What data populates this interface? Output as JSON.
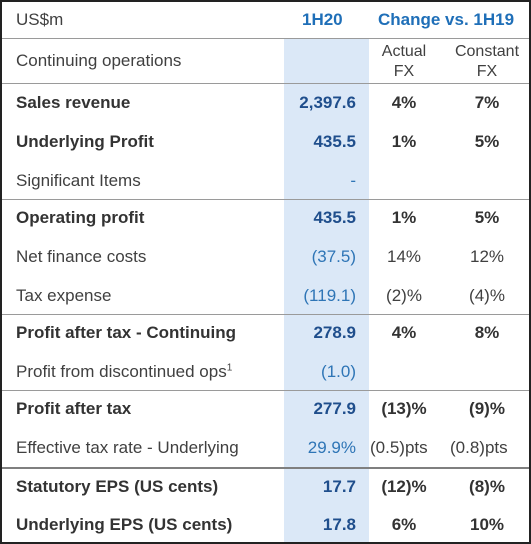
{
  "header": {
    "currency": "US$m",
    "period": "1H20",
    "change": "Change vs. 1H19"
  },
  "subheader": {
    "label": "Continuing operations",
    "actual_line1": "Actual",
    "actual_line2": "FX",
    "constant_line1": "Constant",
    "constant_line2": "FX"
  },
  "rows": [
    {
      "label": "Sales revenue",
      "value": "2,397.6",
      "actual": "4%",
      "constant": "7%"
    },
    {
      "label": "Underlying Profit",
      "value": "435.5",
      "actual": "1%",
      "constant": "5%"
    },
    {
      "label": "Significant Items",
      "value": "-",
      "actual": "",
      "constant": ""
    },
    {
      "label": "Operating profit",
      "value": "435.5",
      "actual": "1%",
      "constant": "5%"
    },
    {
      "label": "Net finance costs",
      "value": "(37.5)",
      "actual": "14%",
      "constant": "12%"
    },
    {
      "label": "Tax expense",
      "value": "(119.1)",
      "actual": "(2)%",
      "constant": "(4)%"
    },
    {
      "label": "Profit after tax - Continuing",
      "value": "278.9",
      "actual": "4%",
      "constant": "8%"
    },
    {
      "label": "Profit from discontinued ops",
      "footnote": "1",
      "value": "(1.0)",
      "actual": "",
      "constant": ""
    },
    {
      "label": "Profit after tax",
      "value": "277.9",
      "actual": "(13)%",
      "constant": "(9)%"
    },
    {
      "label": "Effective tax rate - Underlying",
      "value": "29.9%",
      "actual": "(0.5)pts",
      "constant": "(0.8)pts"
    },
    {
      "label": "Statutory EPS (US cents)",
      "value": "17.7",
      "actual": "(12)%",
      "constant": "(8)%"
    },
    {
      "label": "Underlying EPS (US cents)",
      "value": "17.8",
      "actual": "6%",
      "constant": "10%"
    }
  ]
}
